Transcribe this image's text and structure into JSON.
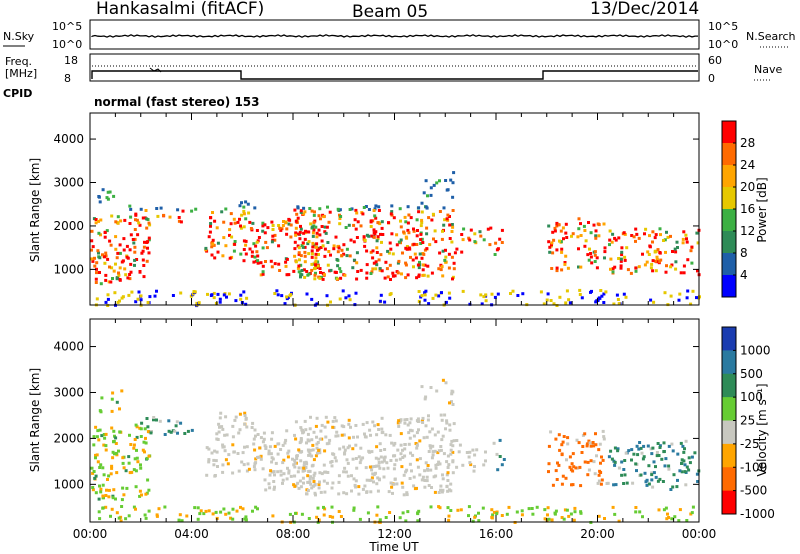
{
  "header": {
    "station": "Hankasalmi (fitACF)",
    "beam": "Beam 05",
    "date": "13/Dec/2014"
  },
  "noise_panel": {
    "left_label": "N.Sky",
    "right_label": "N.Search",
    "left_ticks": [
      "10^5",
      "10^0"
    ],
    "right_ticks": [
      "10^5",
      "10^0"
    ]
  },
  "freq_panel": {
    "left_label_line1": "Freq.",
    "left_label_line2": "[MHz]",
    "left_ticks": [
      "18",
      "8"
    ],
    "right_label": "Nave",
    "right_ticks": [
      "60",
      "0"
    ]
  },
  "cpid": {
    "label": "CPID",
    "value": "normal (fast stereo) 153"
  },
  "time_axis": {
    "label": "Time UT",
    "ticks": [
      "00:00",
      "04:00",
      "08:00",
      "12:00",
      "16:00",
      "20:00",
      "00:00"
    ]
  },
  "chart_data": [
    {
      "type": "heatmap",
      "quantity": "Power",
      "ylabel": "Slant Range [km]",
      "xlabel": "Time UT",
      "x_ticks": [
        "00:00",
        "04:00",
        "08:00",
        "12:00",
        "16:00",
        "20:00",
        "00:00"
      ],
      "y_ticks": [
        1000,
        2000,
        3000,
        4000
      ],
      "ylim": [
        180,
        4600
      ],
      "colorbar": {
        "label": "Power [dB]",
        "ticks": [
          "28",
          "24",
          "20",
          "16",
          "12",
          "8",
          "4"
        ],
        "colors": [
          "#ff0000",
          "#ff6a00",
          "#ffa500",
          "#e6c800",
          "#3cb043",
          "#2e8b57",
          "#1e5fa8",
          "#0000ff"
        ]
      }
    },
    {
      "type": "heatmap",
      "quantity": "Velocity",
      "ylabel": "Slant Range [km]",
      "xlabel": "Time UT",
      "x_ticks": [
        "00:00",
        "04:00",
        "08:00",
        "12:00",
        "16:00",
        "20:00",
        "00:00"
      ],
      "y_ticks": [
        1000,
        2000,
        3000,
        4000
      ],
      "ylim": [
        180,
        4600
      ],
      "colorbar": {
        "label": "Velocity [m s⁻¹]",
        "ticks": [
          "1000",
          "500",
          "100",
          "25",
          "-25",
          "-100",
          "-500",
          "-1000"
        ],
        "colors": [
          "#1a3cb0",
          "#2a7aa0",
          "#2e8b57",
          "#66cc33",
          "#c8c8c0",
          "#ffa500",
          "#ff6a00",
          "#ff0000"
        ]
      }
    }
  ]
}
